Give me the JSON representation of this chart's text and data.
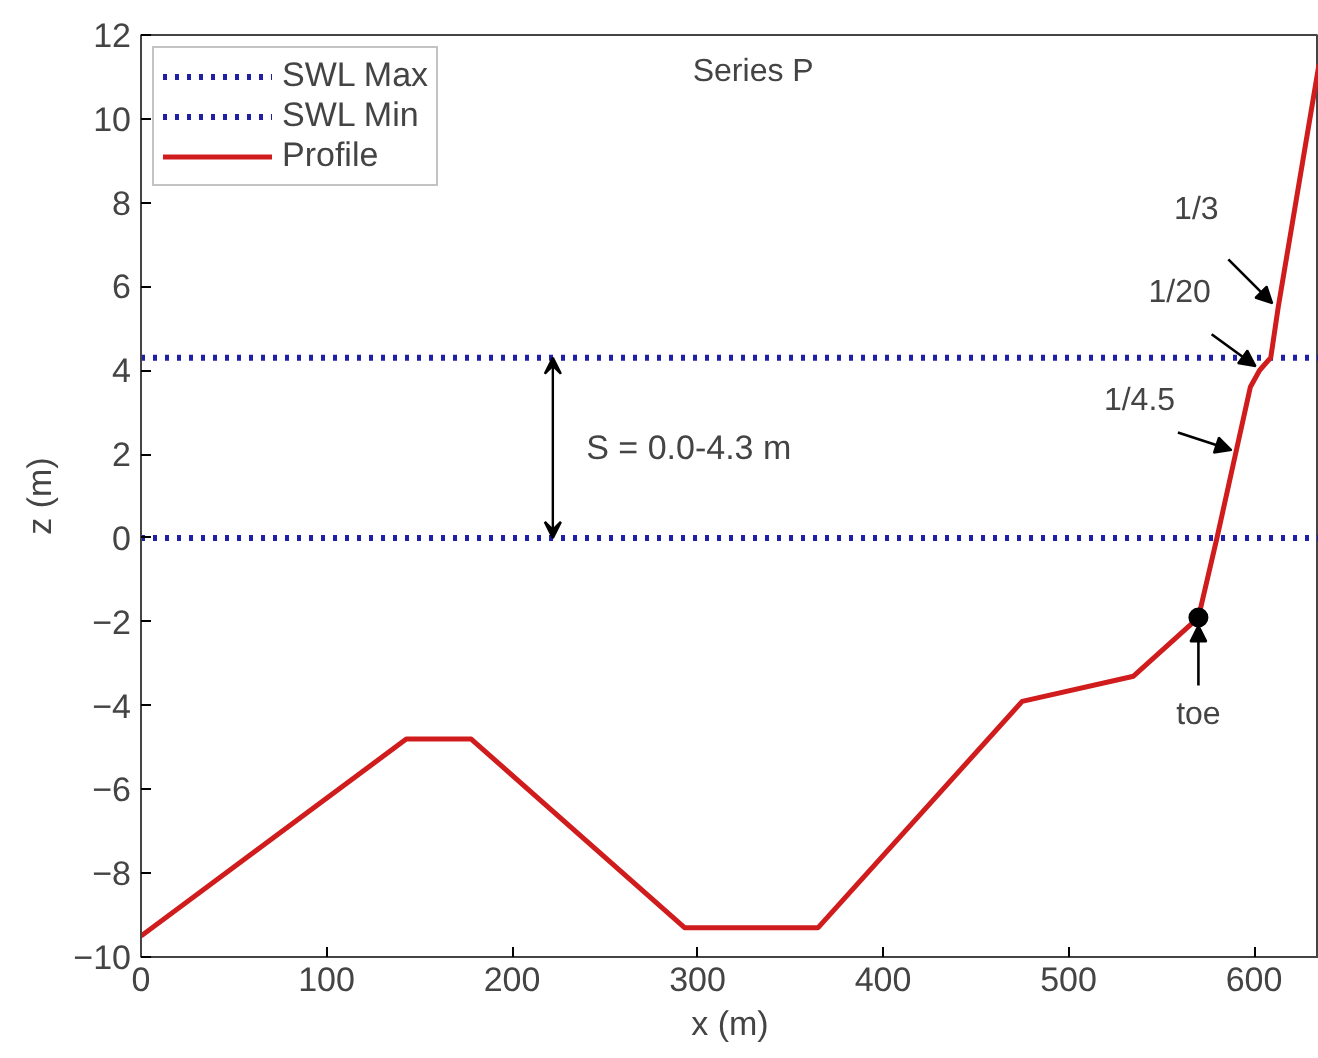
{
  "chart_data": {
    "type": "line",
    "title": "Series P",
    "xlabel": "x (m)",
    "ylabel": "z (m)",
    "xlim": [
      0,
      635
    ],
    "ylim": [
      -10,
      12
    ],
    "xticks": [
      0,
      100,
      200,
      300,
      400,
      500,
      600
    ],
    "yticks": [
      -10,
      -8,
      -6,
      -4,
      -2,
      0,
      2,
      4,
      6,
      8,
      10,
      12
    ],
    "grid": false,
    "legend": "top left",
    "series": [
      {
        "name": "SWL Max",
        "color": "#1f1fa8",
        "line_style": "dotted",
        "x": [
          0,
          635
        ],
        "values": [
          4.3,
          4.3
        ]
      },
      {
        "name": "SWL Min",
        "color": "#1f1fa8",
        "line_style": "dotted",
        "x": [
          0,
          635
        ],
        "values": [
          0,
          0
        ]
      },
      {
        "name": "Profile",
        "color": "#d01c1c",
        "line_style": "solid",
        "x": [
          0,
          143,
          178,
          293,
          365,
          475,
          535,
          570,
          580,
          598,
          603,
          609,
          613,
          635
        ],
        "values": [
          -9.5,
          -4.8,
          -4.8,
          -9.3,
          -9.3,
          -3.9,
          -3.3,
          -1.9,
          0,
          3.6,
          4.0,
          4.3,
          5.5,
          11.3
        ]
      },
      {
        "type": "scatter",
        "marker": "circle",
        "color": "#000000",
        "x": [
          570
        ],
        "values": [
          -1.9
        ]
      }
    ],
    "annotations": [
      "S = 0.0-4.3 m",
      {
        "text": "1/3",
        "x": 612,
        "y": 5.5
      },
      {
        "text": "1/20",
        "x": 603,
        "y": 4.0
      },
      {
        "text": "1/4.5",
        "x": 590,
        "y": 2.0
      },
      {
        "text": "toe",
        "x": 570,
        "y": -1.9
      }
    ]
  }
}
